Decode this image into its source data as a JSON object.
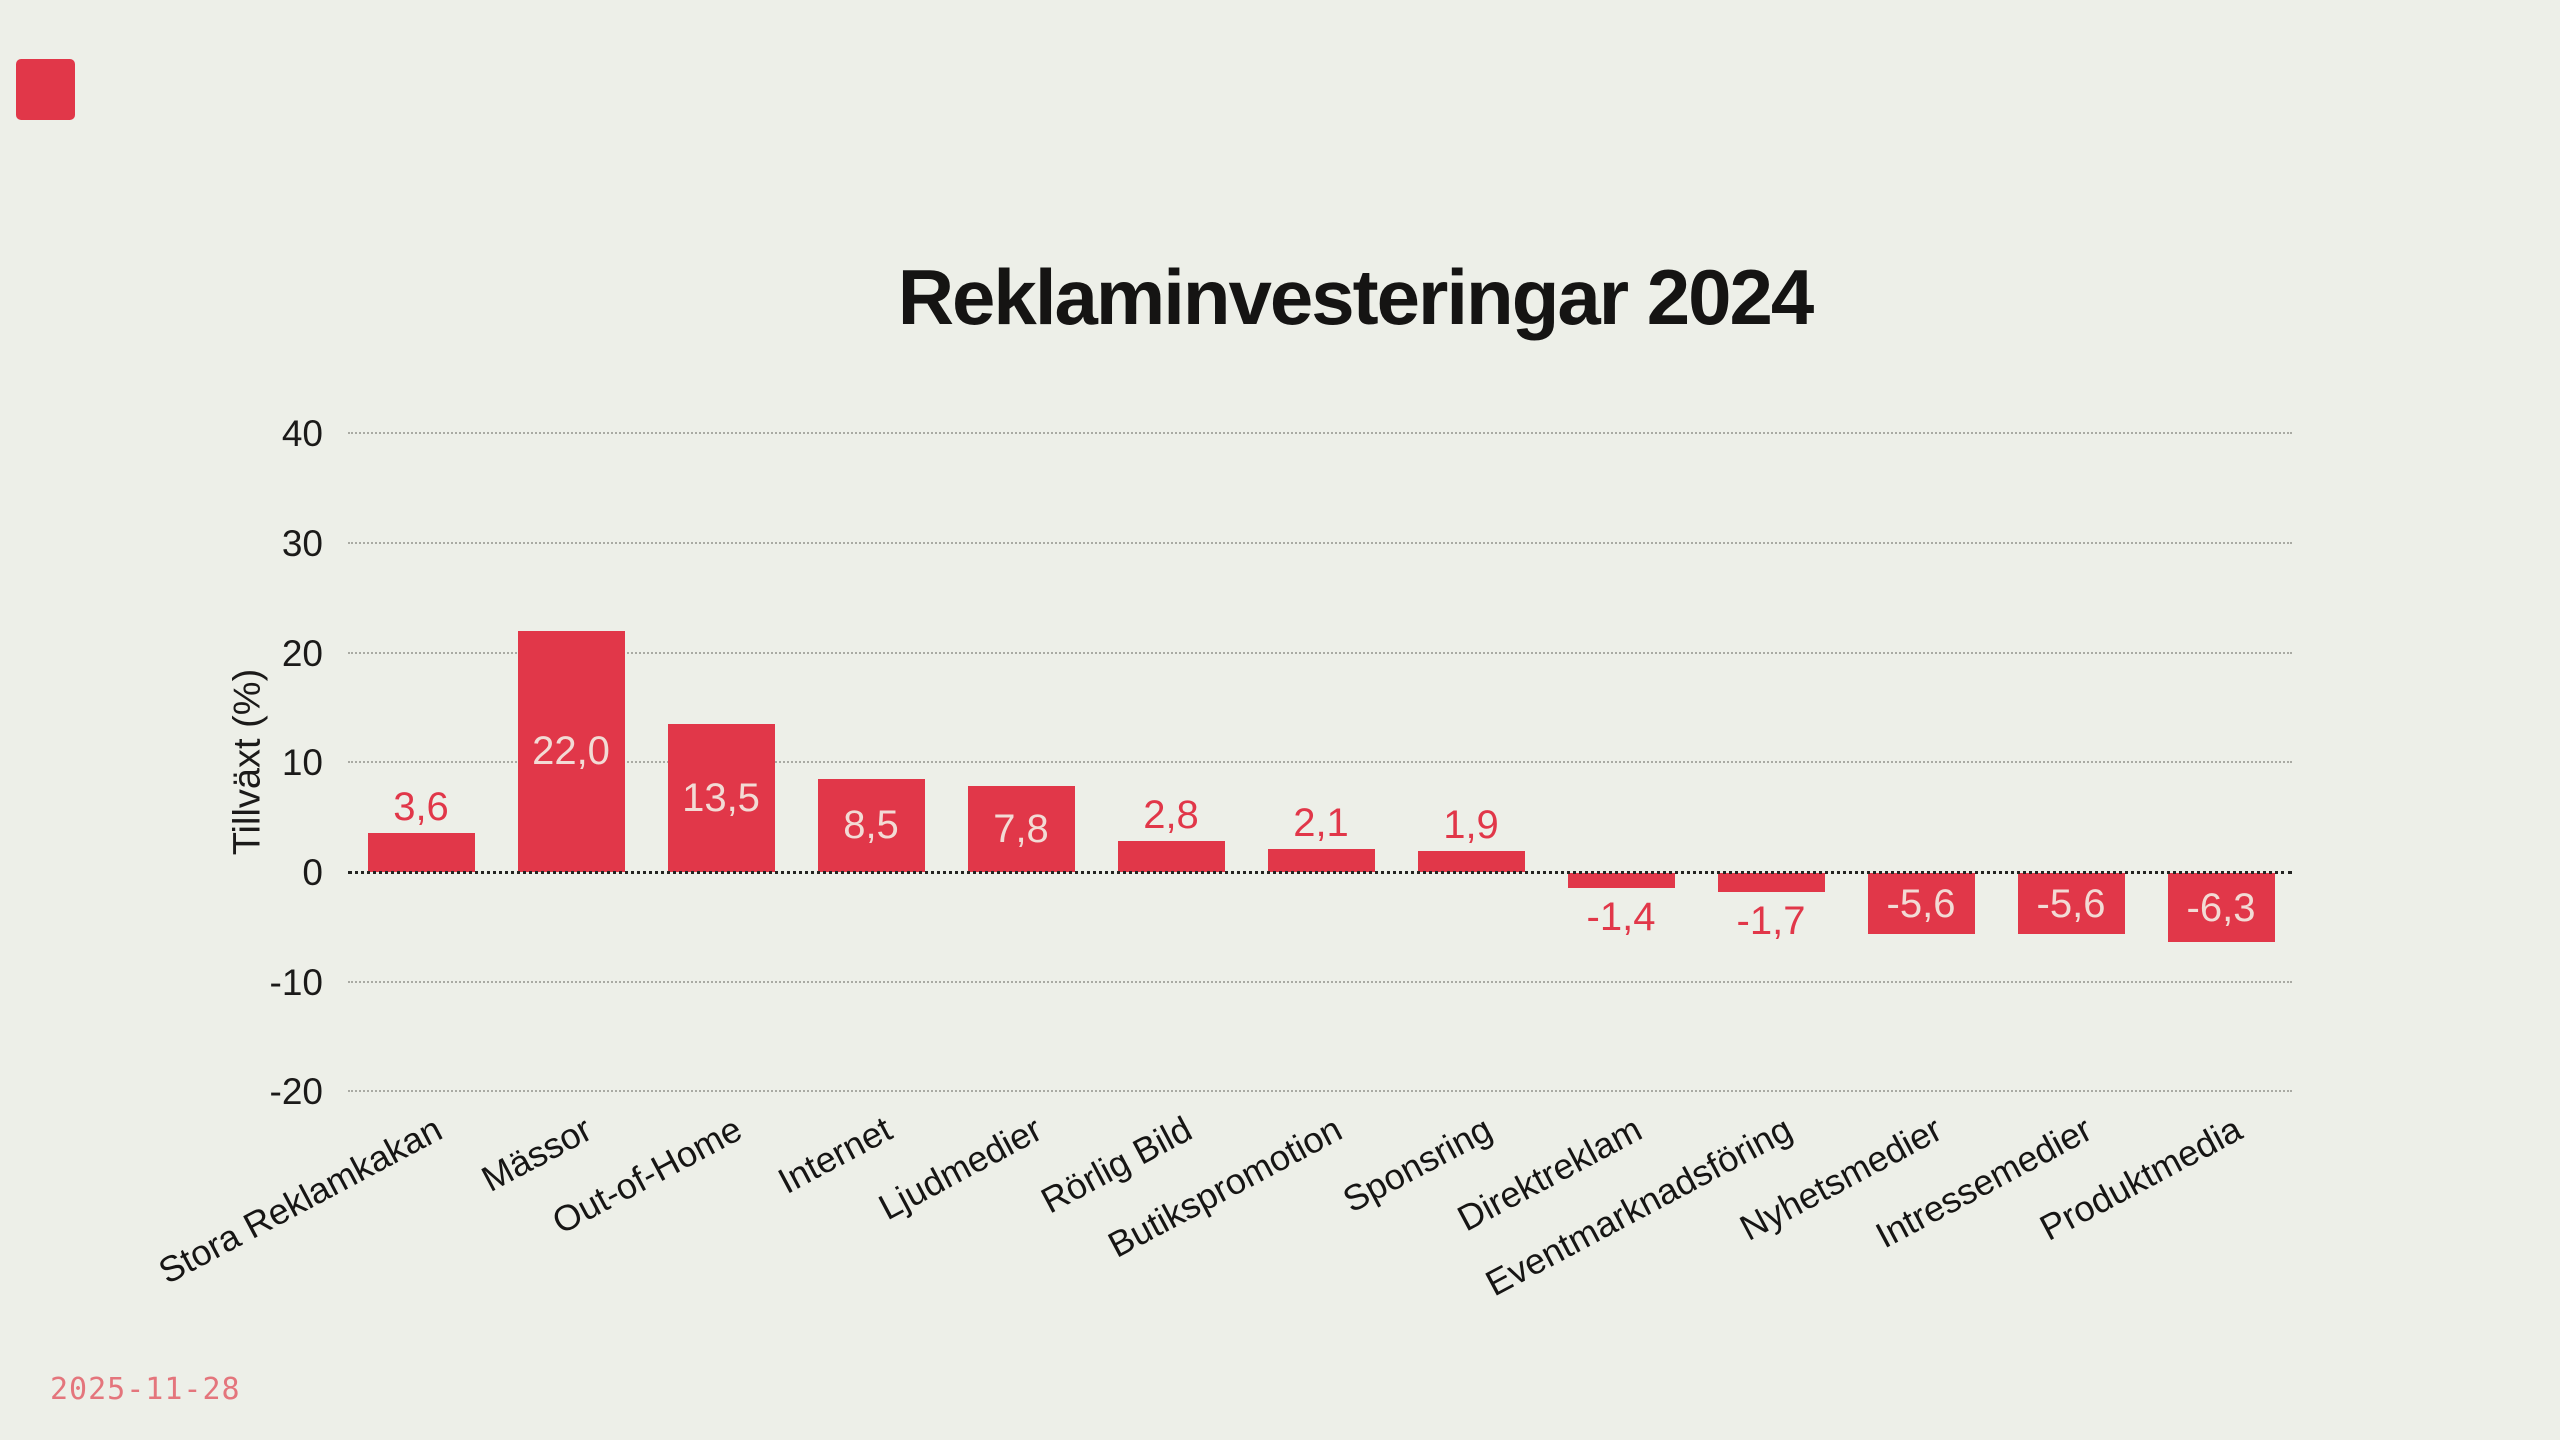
{
  "logo": {
    "color": "#e13749"
  },
  "title": "Reklaminvesteringar 2024",
  "date": "2025-11-28",
  "chart_data": {
    "type": "bar",
    "title": "Reklaminvesteringar 2024",
    "xlabel": "",
    "ylabel": "Tillväxt (%)",
    "categories": [
      "Stora Reklamkakan",
      "Mässor",
      "Out-of-Home",
      "Internet",
      "Ljudmedier",
      "Rörlig Bild",
      "Butikspromotion",
      "Sponsring",
      "Direktreklam",
      "Eventmarknadsföring",
      "Nyhetsmedier",
      "Intressemedier",
      "Produktmedia"
    ],
    "values": [
      3.6,
      22.0,
      13.5,
      8.5,
      7.8,
      2.8,
      2.1,
      1.9,
      -1.4,
      -1.7,
      -5.6,
      -5.6,
      -6.3
    ],
    "value_labels": [
      "3,6",
      "22,0",
      "13,5",
      "8,5",
      "7,8",
      "2,8",
      "2,1",
      "1,9",
      "-1,4",
      "-1,7",
      "-5,6",
      "-5,6",
      "-6,3"
    ],
    "yticks": [
      40,
      30,
      20,
      10,
      0,
      -10,
      -20
    ],
    "ytick_labels": [
      "40",
      "30",
      "20",
      "10",
      "0",
      "-10",
      "-20"
    ],
    "ylim": [
      -25,
      44
    ],
    "grid": "horizontal-dotted",
    "legend": "none",
    "bar_color": "#e13749",
    "inside_label_color": "#f2dbd5",
    "outside_label_color": "#e13749",
    "background_color": "#edefe8"
  }
}
